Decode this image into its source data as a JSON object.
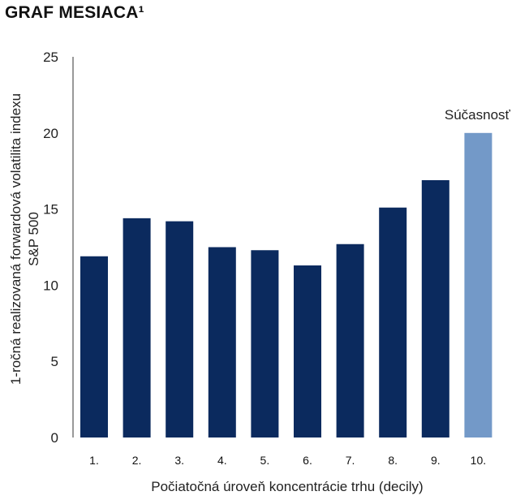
{
  "chart_data": {
    "type": "bar",
    "title": "GRAF MESIACA¹",
    "xlabel": "Počiatočná úroveň koncentrácie trhu (decily)",
    "ylabel_lines": [
      "1-ročná realizovaná forwardová volatilita indexu",
      "S&P 500"
    ],
    "categories": [
      "1.",
      "2.",
      "3.",
      "4.",
      "5.",
      "6.",
      "7.",
      "8.",
      "9.",
      "10."
    ],
    "values": [
      11.9,
      14.4,
      14.2,
      12.5,
      12.3,
      11.3,
      12.7,
      15.1,
      16.9,
      20.0
    ],
    "yticks": [
      "0",
      "5",
      "10",
      "15",
      "20",
      "25"
    ],
    "ylim": [
      0,
      25
    ],
    "grid": false,
    "highlight_index": 9,
    "annotation": "Súčasnosť",
    "colors": {
      "bar": "#0b2a5e",
      "highlight": "#7399c8",
      "axis": "#333333"
    }
  }
}
